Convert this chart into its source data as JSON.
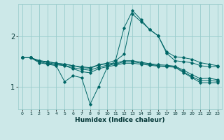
{
  "xlabel": "Humidex (Indice chaleur)",
  "bg_color": "#cce8e8",
  "grid_color": "#99cccc",
  "line_color": "#006666",
  "xlim": [
    -0.5,
    23.5
  ],
  "ylim": [
    0.55,
    2.65
  ],
  "xticks": [
    0,
    1,
    2,
    3,
    4,
    5,
    6,
    7,
    8,
    9,
    10,
    11,
    12,
    13,
    14,
    15,
    16,
    17,
    18,
    19,
    20,
    21,
    22,
    23
  ],
  "yticks": [
    1,
    2
  ],
  "series": [
    [
      1.58,
      1.58,
      1.48,
      1.45,
      1.42,
      1.1,
      1.22,
      1.18,
      0.65,
      1.0,
      1.38,
      1.52,
      1.65,
      2.45,
      2.3,
      2.15,
      2.02,
      1.7,
      1.6,
      1.58,
      1.55,
      1.48,
      1.45,
      1.42
    ],
    [
      1.58,
      1.58,
      1.5,
      1.46,
      1.44,
      1.42,
      1.36,
      1.3,
      1.28,
      1.36,
      1.4,
      1.43,
      1.47,
      1.47,
      1.45,
      1.43,
      1.41,
      1.4,
      1.39,
      1.28,
      1.18,
      1.08,
      1.08,
      1.08
    ],
    [
      1.58,
      1.58,
      1.52,
      1.48,
      1.45,
      1.43,
      1.38,
      1.35,
      1.33,
      1.39,
      1.43,
      1.45,
      1.5,
      1.5,
      1.47,
      1.45,
      1.42,
      1.41,
      1.4,
      1.3,
      1.2,
      1.12,
      1.12,
      1.11
    ],
    [
      1.58,
      1.58,
      1.52,
      1.5,
      1.47,
      1.45,
      1.42,
      1.38,
      1.37,
      1.43,
      1.46,
      1.47,
      1.52,
      1.52,
      1.49,
      1.46,
      1.44,
      1.43,
      1.41,
      1.33,
      1.24,
      1.16,
      1.17,
      1.14
    ],
    [
      1.58,
      1.58,
      1.52,
      1.5,
      1.47,
      1.45,
      1.42,
      1.4,
      1.38,
      1.44,
      1.47,
      1.53,
      2.18,
      2.52,
      2.34,
      2.14,
      2.02,
      1.67,
      1.52,
      1.5,
      1.48,
      1.42,
      1.4,
      1.4
    ]
  ]
}
